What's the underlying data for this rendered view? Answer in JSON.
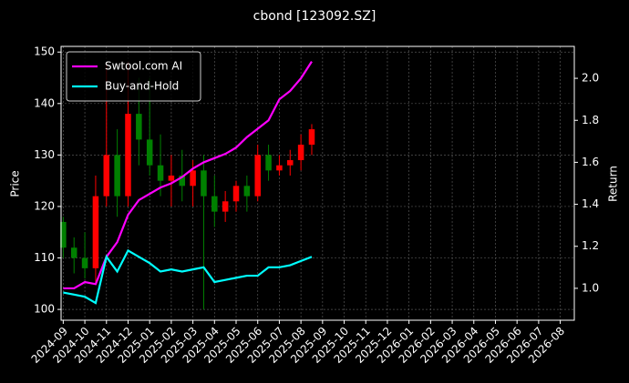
{
  "chart_data": {
    "type": "candlestick",
    "title": "cbond [123092.SZ]",
    "ylabel": "Price",
    "y2label": "Return",
    "x": [
      0,
      0.5,
      1,
      1.5,
      2,
      2.5,
      3,
      3.5,
      4,
      4.5,
      5,
      5.5,
      6,
      6.5,
      7,
      7.5,
      8,
      8.5,
      9,
      9.5,
      10,
      10.5,
      11,
      11.5
    ],
    "open": [
      117,
      112,
      110,
      108,
      122,
      130,
      122,
      138,
      133,
      128,
      125,
      126,
      124,
      127,
      122,
      119,
      121,
      124,
      122,
      130,
      127,
      128,
      129,
      132
    ],
    "high": [
      118,
      114,
      115,
      126,
      148,
      135,
      148,
      145,
      145,
      134,
      130,
      131,
      129,
      130,
      126,
      123,
      125,
      126,
      132,
      132,
      130,
      131,
      134,
      136
    ],
    "low": [
      110,
      107,
      106,
      105,
      120,
      118,
      120,
      128,
      126,
      122,
      120,
      121,
      120,
      100,
      116,
      117,
      119,
      119,
      121,
      125,
      126,
      126,
      127,
      130
    ],
    "close": [
      112,
      110,
      108,
      122,
      130,
      122,
      138,
      133,
      128,
      125,
      126,
      124,
      127,
      122,
      119,
      121,
      124,
      122,
      130,
      127,
      128,
      129,
      132,
      135
    ],
    "up_color": "#ff0000",
    "down_color": "#008000",
    "series": [
      {
        "name": "Swtool.com AI",
        "color": "#ff00ff",
        "axis": "y2",
        "values": [
          1.0,
          1.0,
          1.03,
          1.02,
          1.15,
          1.22,
          1.35,
          1.42,
          1.45,
          1.48,
          1.5,
          1.53,
          1.57,
          1.6,
          1.62,
          1.64,
          1.67,
          1.72,
          1.76,
          1.8,
          1.9,
          1.94,
          2.0,
          2.08
        ]
      },
      {
        "name": "Buy-and-Hold",
        "color": "#00ffff",
        "axis": "y2",
        "values": [
          0.98,
          0.97,
          0.96,
          0.93,
          1.15,
          1.08,
          1.18,
          1.15,
          1.12,
          1.08,
          1.09,
          1.08,
          1.09,
          1.1,
          1.03,
          1.04,
          1.05,
          1.06,
          1.06,
          1.1,
          1.1,
          1.11,
          1.13,
          1.15
        ]
      }
    ],
    "xlim": [
      -0.1,
      23.65
    ],
    "xticks": [
      {
        "value": 0,
        "label": "2024-09"
      },
      {
        "value": 1,
        "label": "2024-10"
      },
      {
        "value": 2,
        "label": "2024-11"
      },
      {
        "value": 3,
        "label": "2024-12"
      },
      {
        "value": 4,
        "label": "2025-01"
      },
      {
        "value": 5,
        "label": "2025-02"
      },
      {
        "value": 6,
        "label": "2025-03"
      },
      {
        "value": 7,
        "label": "2025-04"
      },
      {
        "value": 8,
        "label": "2025-05"
      },
      {
        "value": 9,
        "label": "2025-06"
      },
      {
        "value": 10,
        "label": "2025-07"
      },
      {
        "value": 11,
        "label": "2025-08"
      },
      {
        "value": 12,
        "label": "2025-09"
      },
      {
        "value": 13,
        "label": "2025-10"
      },
      {
        "value": 14,
        "label": "2025-11"
      },
      {
        "value": 15,
        "label": "2025-12"
      },
      {
        "value": 16,
        "label": "2026-01"
      },
      {
        "value": 17,
        "label": "2026-02"
      },
      {
        "value": 18,
        "label": "2026-03"
      },
      {
        "value": 19,
        "label": "2026-04"
      },
      {
        "value": 20,
        "label": "2026-05"
      },
      {
        "value": 21,
        "label": "2026-06"
      },
      {
        "value": 22,
        "label": "2026-07"
      },
      {
        "value": 23,
        "label": "2026-08"
      }
    ],
    "ylim": [
      97.9,
      151.1
    ],
    "yticks": [
      100,
      110,
      120,
      130,
      140,
      150
    ],
    "y2lim": [
      0.848,
      2.152
    ],
    "y2ticks": [
      {
        "value": 1,
        "label": "1.0"
      },
      1.2,
      1.4,
      1.6,
      1.8,
      {
        "value": 2,
        "label": "2.0"
      }
    ],
    "grid": true,
    "legend": "upper left"
  }
}
